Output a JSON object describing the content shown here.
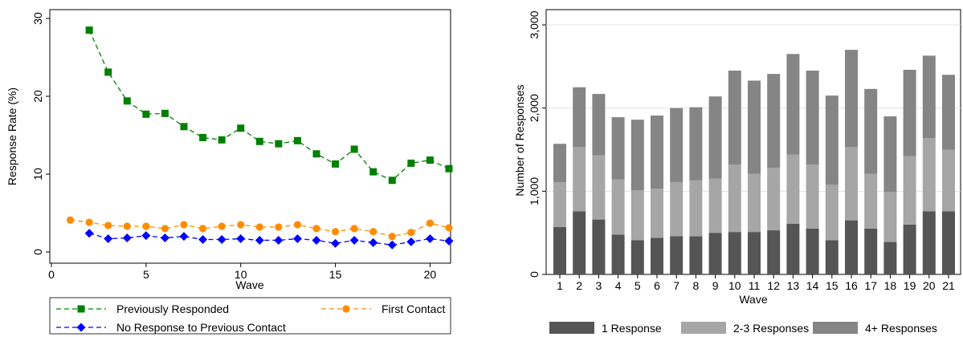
{
  "chart_data": [
    {
      "type": "line",
      "title": "",
      "xlabel": "Wave",
      "ylabel": "Response Rate (%)",
      "xlim": [
        0,
        21
      ],
      "ylim": [
        0,
        30
      ],
      "xticks": [
        0,
        5,
        10,
        15,
        20
      ],
      "yticks": [
        0,
        10,
        20,
        30
      ],
      "grid": false,
      "legend_position": "bottom",
      "series": [
        {
          "name": "Previously Responded",
          "color": "#008000",
          "marker": "square",
          "x": [
            2,
            3,
            4,
            5,
            6,
            7,
            8,
            9,
            10,
            11,
            12,
            13,
            14,
            15,
            16,
            17,
            18,
            19,
            20,
            21
          ],
          "values": [
            28.5,
            23.1,
            19.4,
            17.7,
            17.8,
            16.1,
            14.7,
            14.4,
            15.9,
            14.2,
            13.9,
            14.3,
            12.6,
            11.3,
            13.2,
            10.3,
            9.2,
            11.4,
            11.8,
            10.7
          ]
        },
        {
          "name": "First Contact",
          "color": "#ff8c00",
          "marker": "circle",
          "x": [
            1,
            2,
            3,
            4,
            5,
            6,
            7,
            8,
            9,
            10,
            11,
            12,
            13,
            14,
            15,
            16,
            17,
            18,
            19,
            20,
            21
          ],
          "values": [
            4.1,
            3.8,
            3.4,
            3.3,
            3.3,
            3.0,
            3.5,
            3.0,
            3.3,
            3.5,
            3.2,
            3.2,
            3.5,
            3.0,
            2.6,
            3.0,
            2.6,
            2.0,
            2.5,
            3.7,
            3.1
          ]
        },
        {
          "name": "No Response to Previous Contact",
          "color": "#0000ff",
          "marker": "diamond",
          "x": [
            2,
            3,
            4,
            5,
            6,
            7,
            8,
            9,
            10,
            11,
            12,
            13,
            14,
            15,
            16,
            17,
            18,
            19,
            20,
            21
          ],
          "values": [
            2.4,
            1.7,
            1.8,
            2.1,
            1.8,
            2.0,
            1.6,
            1.6,
            1.7,
            1.5,
            1.5,
            1.7,
            1.5,
            1.1,
            1.5,
            1.2,
            0.9,
            1.3,
            1.7,
            1.4
          ]
        }
      ]
    },
    {
      "type": "bar",
      "stacked": true,
      "title": "",
      "xlabel": "Wave",
      "ylabel": "Number of Responses",
      "ylim": [
        0,
        3000
      ],
      "yticks": [
        0,
        1000,
        2000,
        3000
      ],
      "ytick_labels": [
        "0",
        "1,000",
        "2,000",
        "3,000"
      ],
      "grid": true,
      "legend_position": "bottom",
      "categories": [
        "1",
        "2",
        "3",
        "4",
        "5",
        "6",
        "7",
        "8",
        "9",
        "10",
        "11",
        "12",
        "13",
        "14",
        "15",
        "16",
        "17",
        "18",
        "19",
        "20",
        "21"
      ],
      "series": [
        {
          "name": "1 Response",
          "color": "#555555",
          "values": [
            570,
            760,
            660,
            480,
            410,
            440,
            460,
            460,
            500,
            510,
            510,
            530,
            610,
            550,
            410,
            650,
            550,
            390,
            600,
            760,
            760
          ]
        },
        {
          "name": "2-3 Responses",
          "color": "#a6a6a6",
          "values": [
            540,
            770,
            770,
            660,
            600,
            590,
            650,
            670,
            650,
            810,
            700,
            750,
            830,
            770,
            670,
            880,
            660,
            600,
            820,
            880,
            740
          ]
        },
        {
          "name": "4+ Responses",
          "color": "#858585",
          "values": [
            460,
            720,
            740,
            750,
            850,
            880,
            890,
            880,
            990,
            1130,
            1120,
            1130,
            1210,
            1130,
            1070,
            1170,
            1020,
            910,
            1040,
            990,
            900
          ]
        }
      ]
    }
  ]
}
